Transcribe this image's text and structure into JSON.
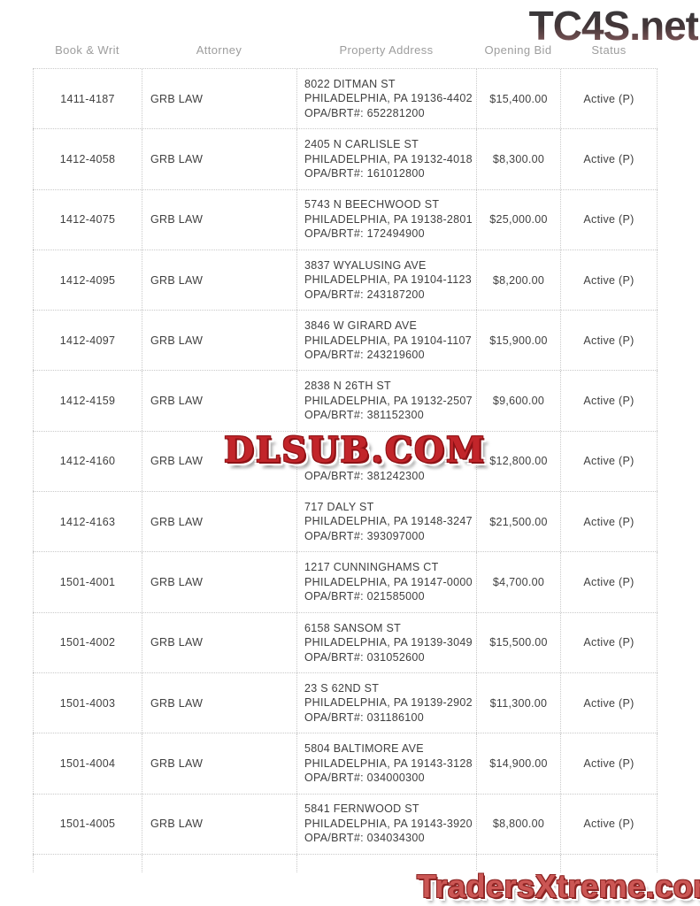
{
  "watermarks": {
    "top": "TC4S.net",
    "middle": "DLSUB.COM",
    "bottom": "TradersXtreme.com"
  },
  "accent_colors": {
    "watermark_red": "#c2252a",
    "watermark_salmon": "#cb5654",
    "header_gray": "#9d9d9d",
    "text_gray": "#3f3f3f"
  },
  "table": {
    "columns": [
      "Book & Writ",
      "Attorney",
      "Property Address",
      "Opening Bid",
      "Status"
    ],
    "rows": [
      {
        "book_writ": "1411-4187",
        "attorney": "GRB LAW",
        "address_line1": "8022 DITMAN ST",
        "address_line2": "PHILADELPHIA, PA 19136-4402",
        "address_line3": "OPA/BRT#: 652281200",
        "opening_bid": "$15,400.00",
        "status": "Active (P)"
      },
      {
        "book_writ": "1412-4058",
        "attorney": "GRB LAW",
        "address_line1": "2405 N CARLISLE ST",
        "address_line2": "PHILADELPHIA, PA 19132-4018",
        "address_line3": "OPA/BRT#: 161012800",
        "opening_bid": "$8,300.00",
        "status": "Active (P)"
      },
      {
        "book_writ": "1412-4075",
        "attorney": "GRB LAW",
        "address_line1": "5743 N BEECHWOOD ST",
        "address_line2": "PHILADELPHIA, PA 19138-2801",
        "address_line3": "OPA/BRT#: 172494900",
        "opening_bid": "$25,000.00",
        "status": "Active (P)"
      },
      {
        "book_writ": "1412-4095",
        "attorney": "GRB LAW",
        "address_line1": "3837 WYALUSING AVE",
        "address_line2": "PHILADELPHIA, PA 19104-1123",
        "address_line3": "OPA/BRT#: 243187200",
        "opening_bid": "$8,200.00",
        "status": "Active (P)"
      },
      {
        "book_writ": "1412-4097",
        "attorney": "GRB LAW",
        "address_line1": "3846 W GIRARD AVE",
        "address_line2": "PHILADELPHIA, PA 19104-1107",
        "address_line3": "OPA/BRT#: 243219600",
        "opening_bid": "$15,900.00",
        "status": "Active (P)"
      },
      {
        "book_writ": "1412-4159",
        "attorney": "GRB LAW",
        "address_line1": "2838 N 26TH ST",
        "address_line2": "PHILADELPHIA, PA 19132-2507",
        "address_line3": "OPA/BRT#: 381152300",
        "opening_bid": "$9,600.00",
        "status": "Active (P)"
      },
      {
        "book_writ": "1412-4160",
        "attorney": "GRB LAW",
        "address_line1": "",
        "address_line2": "",
        "address_line3": "OPA/BRT#: 381242300",
        "opening_bid": "$12,800.00",
        "status": "Active (P)"
      },
      {
        "book_writ": "1412-4163",
        "attorney": "GRB LAW",
        "address_line1": "717 DALY ST",
        "address_line2": "PHILADELPHIA, PA 19148-3247",
        "address_line3": "OPA/BRT#: 393097000",
        "opening_bid": "$21,500.00",
        "status": "Active (P)"
      },
      {
        "book_writ": "1501-4001",
        "attorney": "GRB LAW",
        "address_line1": "1217 CUNNINGHAMS CT",
        "address_line2": "PHILADELPHIA, PA 19147-0000",
        "address_line3": "OPA/BRT#: 021585000",
        "opening_bid": "$4,700.00",
        "status": "Active (P)"
      },
      {
        "book_writ": "1501-4002",
        "attorney": "GRB LAW",
        "address_line1": "6158 SANSOM ST",
        "address_line2": "PHILADELPHIA, PA 19139-3049",
        "address_line3": "OPA/BRT#: 031052600",
        "opening_bid": "$15,500.00",
        "status": "Active (P)"
      },
      {
        "book_writ": "1501-4003",
        "attorney": "GRB LAW",
        "address_line1": "23 S 62ND ST",
        "address_line2": "PHILADELPHIA, PA 19139-2902",
        "address_line3": "OPA/BRT#: 031186100",
        "opening_bid": "$11,300.00",
        "status": "Active (P)"
      },
      {
        "book_writ": "1501-4004",
        "attorney": "GRB LAW",
        "address_line1": "5804 BALTIMORE AVE",
        "address_line2": "PHILADELPHIA, PA 19143-3128",
        "address_line3": "OPA/BRT#: 034000300",
        "opening_bid": "$14,900.00",
        "status": "Active (P)"
      },
      {
        "book_writ": "1501-4005",
        "attorney": "GRB LAW",
        "address_line1": "5841 FERNWOOD ST",
        "address_line2": "PHILADELPHIA, PA 19143-3920",
        "address_line3": "OPA/BRT#: 034034300",
        "opening_bid": "$8,800.00",
        "status": "Active (P)"
      }
    ]
  }
}
